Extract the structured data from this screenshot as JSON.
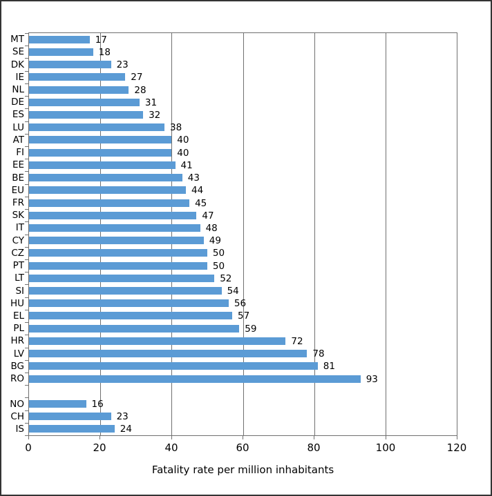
{
  "window": {
    "background": "#ffffff",
    "frame_border_color": "#333333"
  },
  "chart_data": {
    "type": "bar",
    "orientation": "horizontal",
    "title": "",
    "xlabel": "Fatality rate per million inhabitants",
    "ylabel": "",
    "xlim": [
      0,
      120
    ],
    "xticks": [
      0,
      20,
      40,
      60,
      80,
      100,
      120
    ],
    "grid": true,
    "gridline_color": "#6f6f6f",
    "axis_color": "#6f6f6f",
    "bar_color": "#5b9bd5",
    "value_labels_shown": true,
    "legend": "none",
    "groups": [
      {
        "name": "eu-countries",
        "categories": [
          "MT",
          "SE",
          "DK",
          "IE",
          "NL",
          "DE",
          "ES",
          "LU",
          "AT",
          "FI",
          "EE",
          "BE",
          "EU",
          "FR",
          "SK",
          "IT",
          "CY",
          "CZ",
          "PT",
          "LT",
          "SI",
          "HU",
          "EL",
          "PL",
          "HR",
          "LV",
          "BG",
          "RO"
        ],
        "values": [
          17,
          18,
          23,
          27,
          28,
          31,
          32,
          38,
          40,
          40,
          41,
          43,
          44,
          45,
          47,
          48,
          49,
          50,
          50,
          52,
          54,
          56,
          57,
          59,
          72,
          78,
          81,
          93
        ]
      },
      {
        "name": "efta-countries",
        "categories": [
          "NO",
          "CH",
          "IS"
        ],
        "values": [
          16,
          23,
          24
        ]
      }
    ]
  }
}
